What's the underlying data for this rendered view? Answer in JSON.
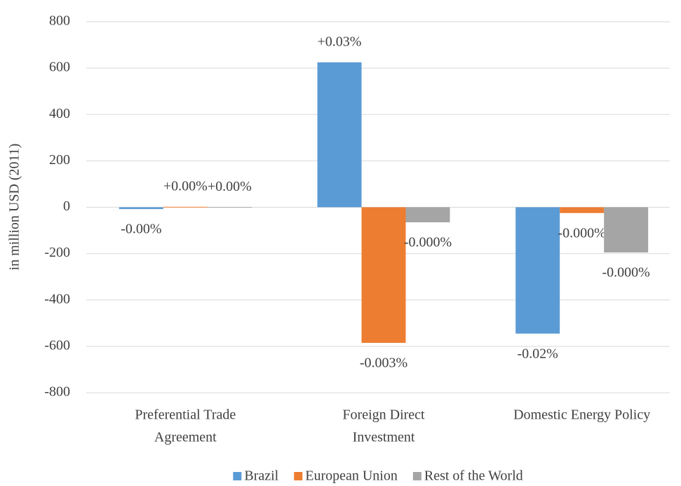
{
  "chart_data": {
    "type": "bar",
    "y_label": "in million  USD (2011)",
    "categories": [
      [
        "Preferential Trade",
        "Agreement"
      ],
      [
        "Foreign Direct",
        "Investment"
      ],
      [
        "Domestic Energy Policy"
      ]
    ],
    "series": [
      {
        "name": "Brazil",
        "color": "#5b9bd5",
        "values": [
          -8,
          625,
          -545
        ],
        "value_labels": [
          "-0.00%",
          "+0.03%",
          "-0.02%"
        ]
      },
      {
        "name": "European Union",
        "color": "#ed7d31",
        "values": [
          2,
          -585,
          -25
        ],
        "value_labels": [
          "+0.00%",
          "-0.003%",
          "-0.000%"
        ]
      },
      {
        "name": "Rest of the World",
        "color": "#a5a5a5",
        "values": [
          1,
          -65,
          -195
        ],
        "value_labels": [
          "+0.00%",
          "-0.000%",
          "-0.000%"
        ]
      }
    ],
    "ylim": [
      -800,
      800
    ],
    "yticks": [
      -800,
      -600,
      -400,
      -200,
      0,
      200,
      400,
      600,
      800
    ],
    "grid": true,
    "legend": "bottom"
  }
}
